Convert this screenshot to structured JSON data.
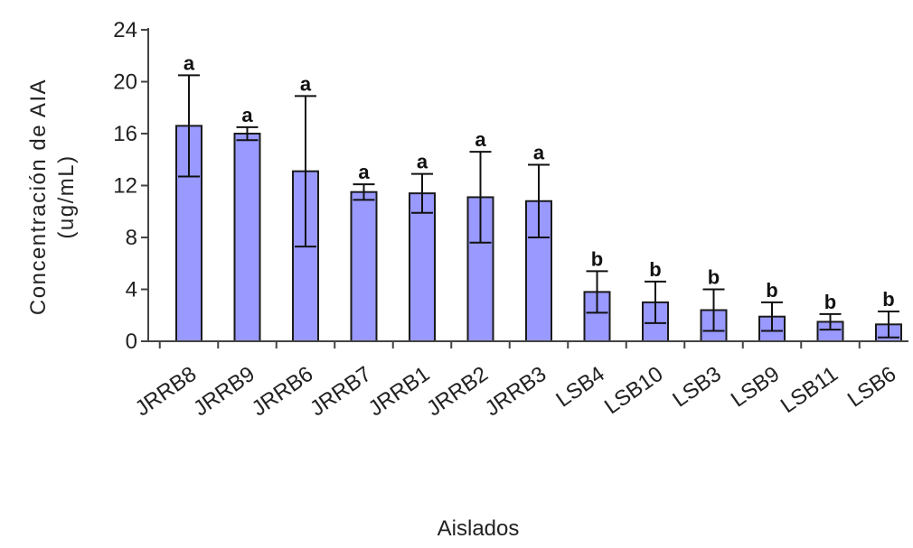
{
  "chart_data": {
    "type": "bar",
    "title": "",
    "xlabel": "Aislados",
    "ylabel": "Concentración de AIA",
    "ylabel_unit": "(ug/mL)",
    "categories": [
      "JRRB8",
      "JRRB9",
      "JRRB6",
      "JRRB7",
      "JRRB1",
      "JRRB2",
      "JRRB3",
      "LSB4",
      "LSB10",
      "LSB3",
      "LSB9",
      "LSB11",
      "LSB6"
    ],
    "values": [
      16.6,
      16.0,
      13.1,
      11.5,
      11.4,
      11.1,
      10.8,
      3.8,
      3.0,
      2.4,
      1.9,
      1.5,
      1.3
    ],
    "error": [
      3.9,
      0.5,
      5.8,
      0.6,
      1.5,
      3.5,
      2.8,
      1.6,
      1.6,
      1.6,
      1.1,
      0.6,
      1.0
    ],
    "significance": [
      "a",
      "a",
      "a",
      "a",
      "a",
      "a",
      "a",
      "b",
      "b",
      "b",
      "b",
      "b",
      "b"
    ],
    "ylim": [
      0,
      24
    ],
    "yticks": [
      0,
      4,
      8,
      12,
      16,
      20,
      24
    ],
    "grid": false,
    "legend": "none",
    "bar_color": "#9999FF",
    "bar_edge_color": "#1a1a1a"
  }
}
